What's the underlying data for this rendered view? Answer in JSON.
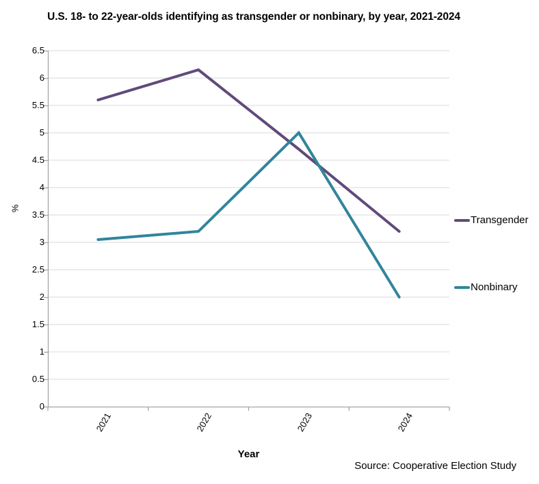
{
  "chart_data": {
    "type": "line",
    "title": "U.S. 18- to 22-year-olds identifying as transgender or nonbinary, by year, 2021-2024",
    "xlabel": "Year",
    "ylabel": "%",
    "source": "Source: Cooperative Election Study",
    "categories": [
      "2021",
      "2022",
      "2023",
      "2024"
    ],
    "series": [
      {
        "name": "Transgender",
        "color": "#604a7b",
        "values": [
          5.6,
          6.15,
          4.7,
          3.2
        ]
      },
      {
        "name": "Nonbinary",
        "color": "#31859b",
        "values": [
          3.05,
          3.2,
          5.0,
          2.0
        ]
      }
    ],
    "ylim": [
      0,
      6.5
    ],
    "ytick_step": 0.5,
    "yticks": [
      "0",
      "0.5",
      "1",
      "1.5",
      "2",
      "2.5",
      "3",
      "3.5",
      "4",
      "4.5",
      "5",
      "5.5",
      "6",
      "6.5"
    ],
    "grid": true,
    "legend_position": "right",
    "x_tick_label_rotation": -60,
    "gridline_color": "#d9d9d9",
    "axis_color": "#a6a6a6",
    "line_width": 4
  }
}
